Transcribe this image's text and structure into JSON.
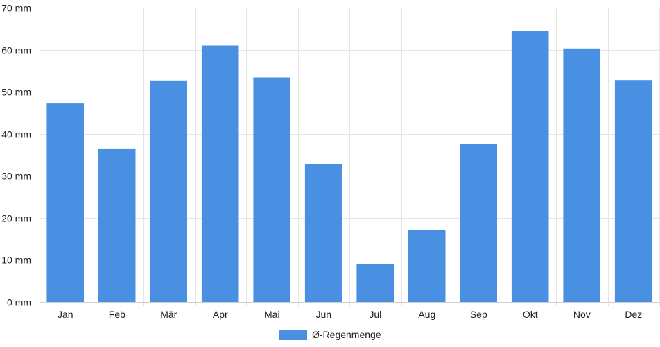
{
  "chart_data": {
    "type": "bar",
    "categories": [
      "Jan",
      "Feb",
      "Mär",
      "Apr",
      "Mai",
      "Jun",
      "Jul",
      "Aug",
      "Sep",
      "Okt",
      "Nov",
      "Dez"
    ],
    "series": [
      {
        "name": "Ø-Regenmenge",
        "values": [
          47.2,
          36.5,
          52.7,
          61.0,
          53.4,
          32.7,
          9.0,
          17.1,
          37.5,
          64.5,
          60.3,
          52.8
        ],
        "color": "#4a90e2"
      }
    ],
    "y_ticks": [
      "0 mm",
      "10 mm",
      "20 mm",
      "30 mm",
      "40 mm",
      "50 mm",
      "60 mm",
      "70 mm"
    ],
    "ylim": [
      0,
      70
    ],
    "y_unit": "mm",
    "grid": true,
    "legend_position": "bottom-center",
    "grid_color": "#e5e5e5"
  }
}
